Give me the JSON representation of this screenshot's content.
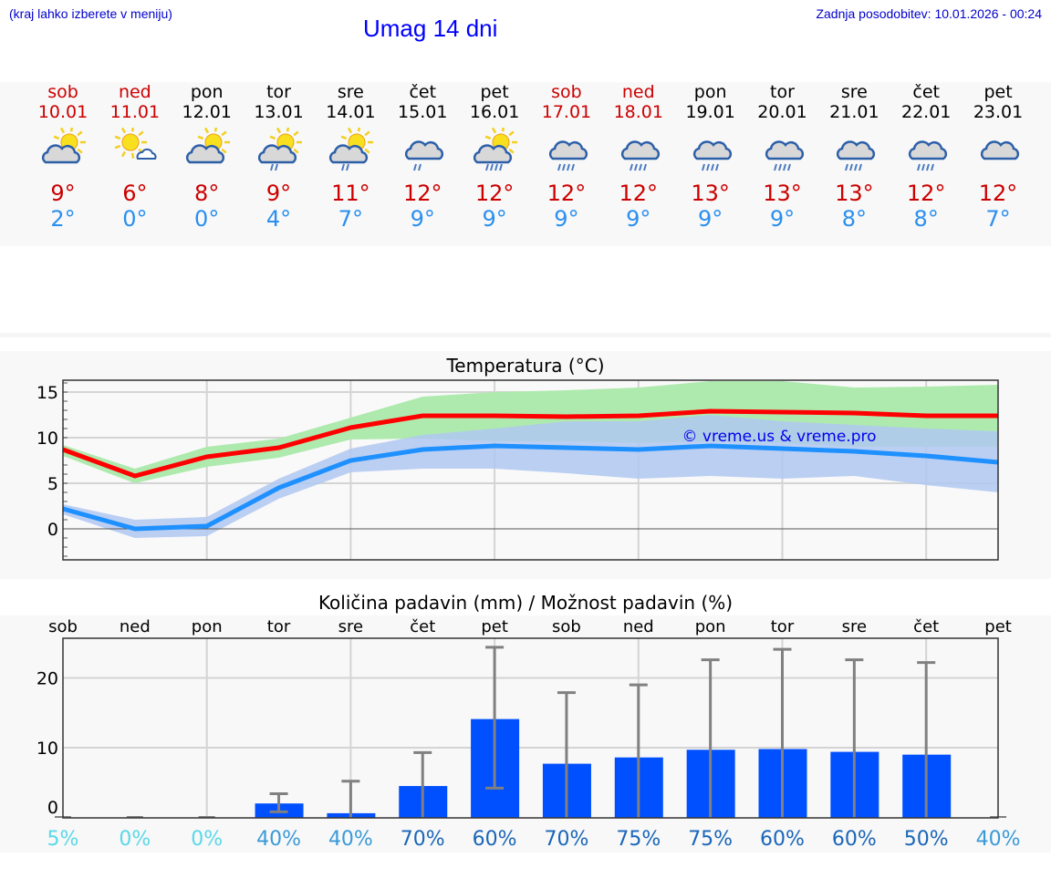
{
  "header": {
    "hint": "(kraj lahko izberete v meniju)",
    "title": "Umag 14 dni",
    "updated": "Zadnja posodobitev: 10.01.2026 - 00:24"
  },
  "days": [
    {
      "name": "sob",
      "date": "10.01",
      "weekend": true,
      "icon": "sun-cloud",
      "max": "9°",
      "min": "2°"
    },
    {
      "name": "ned",
      "date": "11.01",
      "weekend": true,
      "icon": "sun-small-cloud",
      "max": "6°",
      "min": "0°"
    },
    {
      "name": "pon",
      "date": "12.01",
      "weekend": false,
      "icon": "sun-cloud",
      "max": "8°",
      "min": "0°"
    },
    {
      "name": "tor",
      "date": "13.01",
      "weekend": false,
      "icon": "sun-cloud-light-rain",
      "max": "9°",
      "min": "4°"
    },
    {
      "name": "sre",
      "date": "14.01",
      "weekend": false,
      "icon": "sun-cloud-light-rain",
      "max": "11°",
      "min": "7°"
    },
    {
      "name": "čet",
      "date": "15.01",
      "weekend": false,
      "icon": "cloud-light-rain",
      "max": "12°",
      "min": "9°"
    },
    {
      "name": "pet",
      "date": "16.01",
      "weekend": false,
      "icon": "sun-cloud-rain",
      "max": "12°",
      "min": "9°"
    },
    {
      "name": "sob",
      "date": "17.01",
      "weekend": true,
      "icon": "cloud-rain",
      "max": "12°",
      "min": "9°"
    },
    {
      "name": "ned",
      "date": "18.01",
      "weekend": true,
      "icon": "cloud-rain",
      "max": "12°",
      "min": "9°"
    },
    {
      "name": "pon",
      "date": "19.01",
      "weekend": false,
      "icon": "cloud-rain",
      "max": "13°",
      "min": "9°"
    },
    {
      "name": "tor",
      "date": "20.01",
      "weekend": false,
      "icon": "cloud-rain",
      "max": "13°",
      "min": "9°"
    },
    {
      "name": "sre",
      "date": "21.01",
      "weekend": false,
      "icon": "cloud-rain",
      "max": "13°",
      "min": "8°"
    },
    {
      "name": "čet",
      "date": "22.01",
      "weekend": false,
      "icon": "cloud-rain",
      "max": "12°",
      "min": "8°"
    },
    {
      "name": "pet",
      "date": "23.01",
      "weekend": false,
      "icon": "cloud",
      "max": "12°",
      "min": "7°"
    }
  ],
  "chart_data": [
    {
      "type": "line",
      "title": "Temperatura (°C)",
      "ylim": [
        -3.4,
        16.3
      ],
      "yticks": [
        "15",
        "10",
        "5",
        "0"
      ],
      "watermark": "© vreme.us & vreme.pro",
      "colors": {
        "max": "#ff0000",
        "min": "#1e90ff",
        "max_band": "#aeeaae",
        "min_band": "#b0c8f2"
      },
      "series": [
        {
          "name": "max",
          "values": [
            8.7,
            5.8,
            7.9,
            8.9,
            11.1,
            12.4,
            12.4,
            12.3,
            12.4,
            12.9,
            12.8,
            12.7,
            12.4,
            12.4
          ],
          "upper": [
            9.2,
            6.6,
            9.0,
            9.9,
            12.2,
            14.5,
            15.0,
            15.2,
            15.5,
            16.2,
            16.2,
            15.5,
            15.6,
            15.8
          ],
          "lower": [
            8.0,
            5.0,
            6.8,
            7.8,
            9.8,
            9.9,
            9.6,
            9.6,
            9.4,
            9.6,
            9.4,
            9.0,
            9.0,
            9.0
          ]
        },
        {
          "name": "min",
          "values": [
            2.2,
            0.0,
            0.3,
            4.5,
            7.5,
            8.7,
            9.1,
            8.9,
            8.7,
            9.1,
            8.8,
            8.5,
            8.0,
            7.3
          ],
          "upper": [
            2.7,
            1.0,
            1.3,
            5.5,
            8.8,
            10.3,
            11.0,
            11.8,
            11.8,
            12.5,
            11.8,
            11.4,
            11.0,
            10.7
          ],
          "lower": [
            1.6,
            -1.0,
            -0.8,
            3.3,
            6.2,
            6.6,
            6.6,
            6.1,
            5.5,
            5.8,
            5.5,
            5.8,
            4.8,
            4.0
          ]
        }
      ]
    },
    {
      "type": "bar",
      "title": "Količina padavin (mm) / Možnost padavin (%)",
      "ylim": [
        -0.2,
        25.5
      ],
      "yticks": [
        "20",
        "10",
        "0"
      ],
      "categories": [
        "sob",
        "ned",
        "pon",
        "tor",
        "sre",
        "čet",
        "pet",
        "sob",
        "ned",
        "pon",
        "tor",
        "sre",
        "čet",
        "pet"
      ],
      "values": [
        0,
        0,
        0,
        2.0,
        0.6,
        4.5,
        14.1,
        7.7,
        8.6,
        9.7,
        9.8,
        9.4,
        9.0,
        0
      ],
      "err_low": [
        0,
        0,
        0,
        0.8,
        0,
        0,
        4.2,
        0,
        0,
        0,
        0,
        0,
        0,
        0
      ],
      "err_high": [
        0,
        0,
        0,
        3.4,
        5.2,
        9.3,
        24.4,
        17.9,
        19.0,
        22.6,
        24.1,
        22.6,
        22.2,
        0
      ],
      "probability": [
        "5%",
        "0%",
        "0%",
        "40%",
        "40%",
        "70%",
        "60%",
        "70%",
        "75%",
        "75%",
        "60%",
        "60%",
        "50%",
        "40%"
      ],
      "prob_colors": [
        "#5ad8e8",
        "#5ad8e8",
        "#5ad8e8",
        "#3a9ad8",
        "#3a9ad8",
        "#1a66b8",
        "#1a66b8",
        "#1a66b8",
        "#1a66b8",
        "#1a66b8",
        "#1a66b8",
        "#1a66b8",
        "#1a66b8",
        "#3a9ad8"
      ],
      "colors": {
        "bar": "#0050ff",
        "err": "#808080"
      }
    }
  ]
}
